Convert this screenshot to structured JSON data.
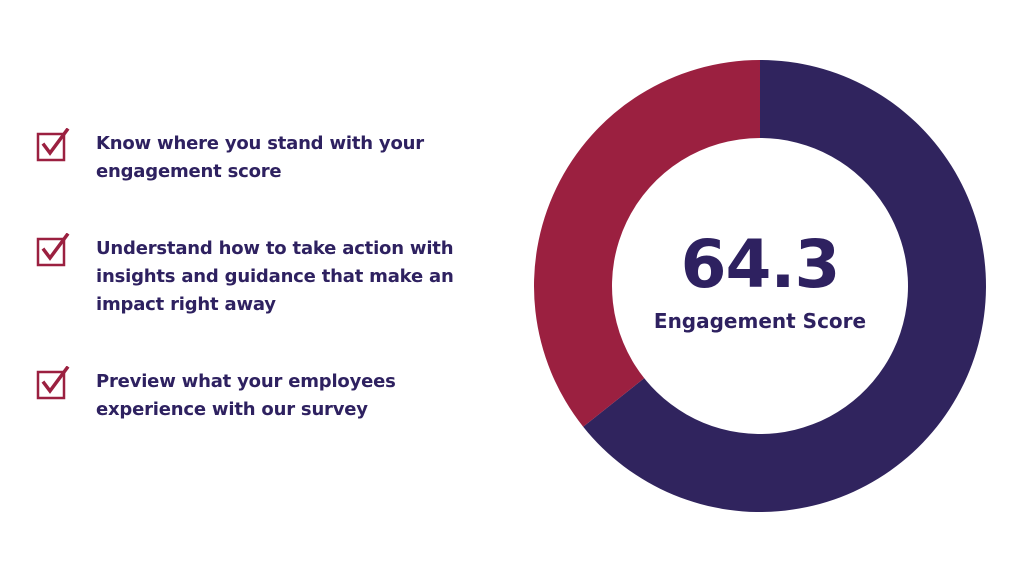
{
  "features": [
    {
      "text": "Know where you stand with your engagement score",
      "icon": "checkbox-checked-icon"
    },
    {
      "text": "Understand how to take  action with insights and guidance that make an impact right away",
      "icon": "checkbox-checked-icon"
    },
    {
      "text": "Preview what your employees experience with our survey",
      "icon": "checkbox-checked-icon"
    }
  ],
  "score": {
    "value": "64.3",
    "label": "Engagement Score"
  },
  "colors": {
    "primary": "#30245e",
    "accent": "#9b2040",
    "text": "#2e2160",
    "check": "#9b2040"
  },
  "chart_data": {
    "type": "pie",
    "donut": true,
    "categories": [
      "",
      ""
    ],
    "values": [
      64.3,
      35.7
    ],
    "colors": [
      "#30245e",
      "#9b2040"
    ],
    "start_angle_deg": 0,
    "direction": "clockwise"
  }
}
